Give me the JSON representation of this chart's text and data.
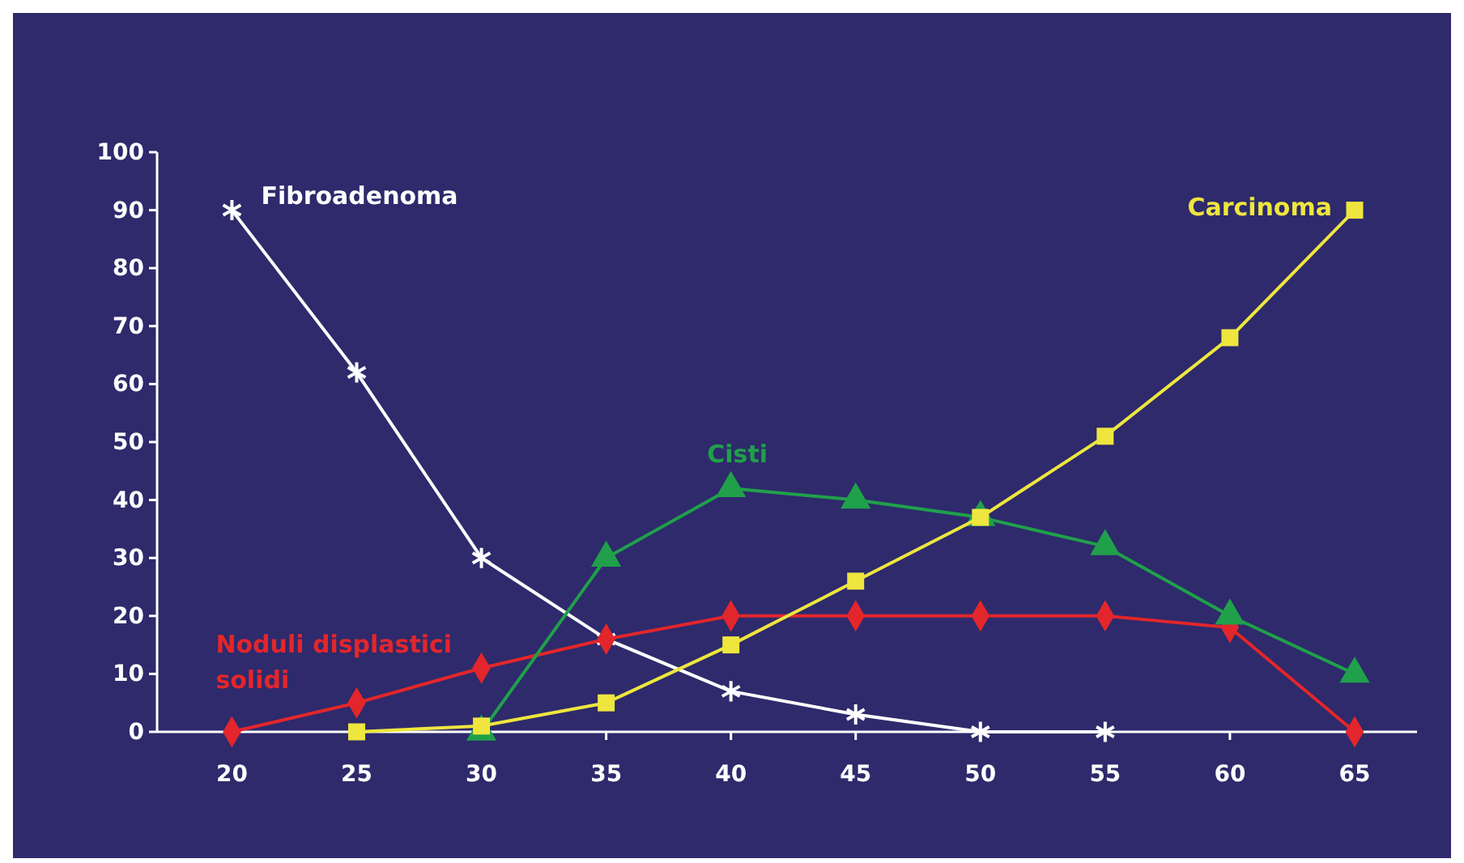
{
  "chart_data": {
    "type": "line",
    "x": [
      20,
      25,
      30,
      35,
      40,
      45,
      50,
      55,
      60,
      65
    ],
    "xlim": [
      17,
      67.5
    ],
    "xticks": [
      20,
      25,
      30,
      35,
      40,
      45,
      50,
      55,
      60,
      65
    ],
    "ylim": [
      0,
      100
    ],
    "yticks": [
      0,
      10,
      20,
      30,
      40,
      50,
      60,
      70,
      80,
      90,
      100
    ],
    "grid": false,
    "series": [
      {
        "name": "Fibroadenoma",
        "color": "#ffffff",
        "marker": "cross",
        "values": [
          90,
          62,
          30,
          16,
          7,
          3,
          0,
          0,
          null,
          null
        ]
      },
      {
        "name": "Noduli displastici solidi",
        "color": "#e3262b",
        "marker": "diamond",
        "values": [
          0,
          5,
          11,
          16,
          20,
          20,
          20,
          20,
          18,
          0
        ]
      },
      {
        "name": "Cisti",
        "color": "#20a04a",
        "marker": "triangle",
        "values": [
          null,
          null,
          0,
          30,
          42,
          40,
          37,
          32,
          20,
          10
        ]
      },
      {
        "name": "Carcinoma",
        "color": "#eee63e",
        "marker": "square",
        "values": [
          null,
          0,
          1,
          5,
          15,
          26,
          37,
          51,
          68,
          90
        ]
      }
    ]
  }
}
